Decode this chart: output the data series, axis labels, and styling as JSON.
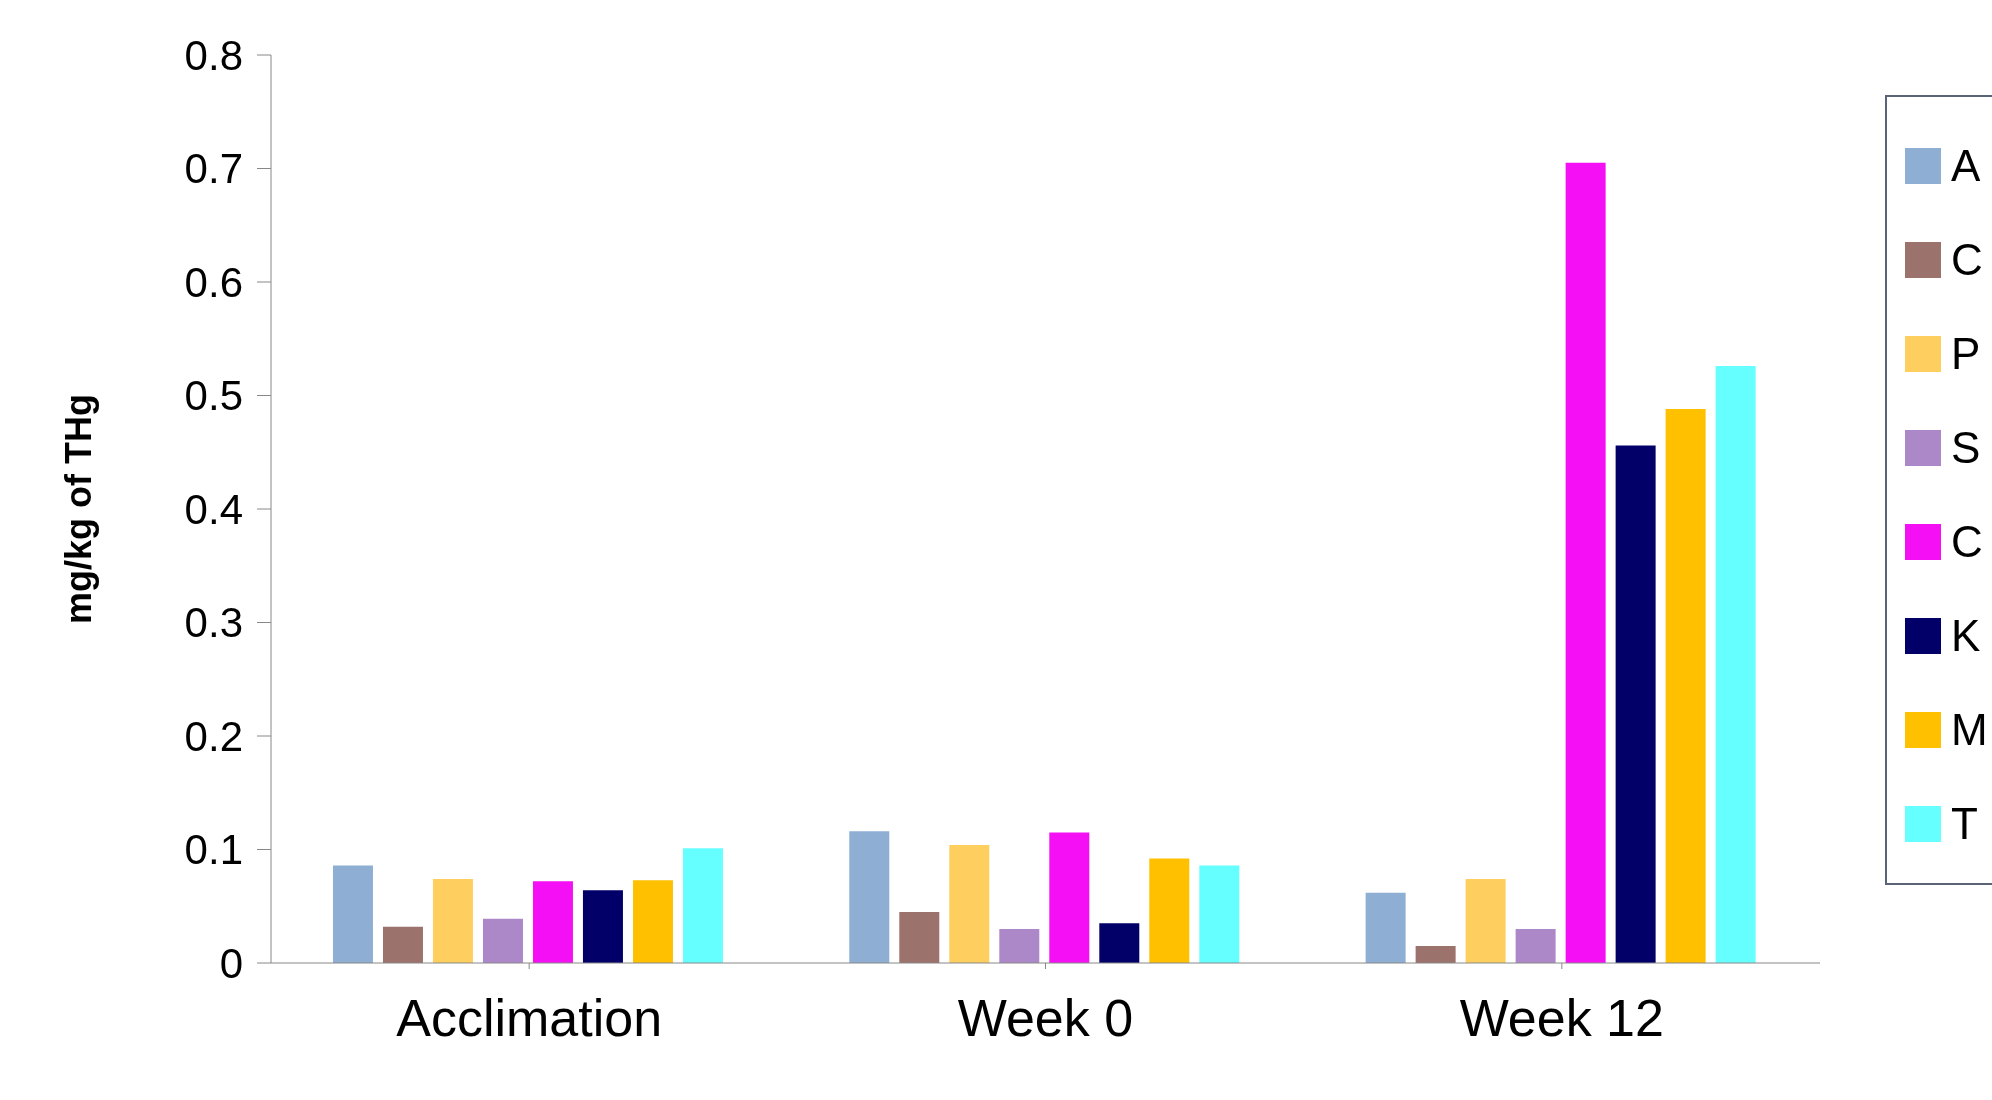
{
  "chart_data": {
    "type": "bar",
    "ylabel": "mg/kg of THg",
    "categories": [
      "Acclimation",
      "Week 0",
      "Week 12"
    ],
    "series": [
      {
        "name": "A",
        "color": "#8eaed4",
        "values": [
          0.086,
          0.116,
          0.062
        ]
      },
      {
        "name": "C",
        "color": "#9c726c",
        "values": [
          0.032,
          0.045,
          0.015
        ]
      },
      {
        "name": "P",
        "color": "#fecf5f",
        "values": [
          0.074,
          0.104,
          0.074
        ]
      },
      {
        "name": "S",
        "color": "#ad88c8",
        "values": [
          0.039,
          0.03,
          0.03
        ]
      },
      {
        "name": "C",
        "color": "#f50ff5",
        "values": [
          0.072,
          0.115,
          0.705
        ]
      },
      {
        "name": "K",
        "color": "#020068",
        "values": [
          0.064,
          0.035,
          0.456
        ]
      },
      {
        "name": "M",
        "color": "#ffc000",
        "values": [
          0.073,
          0.092,
          0.488
        ]
      },
      {
        "name": "T",
        "color": "#66ffff",
        "values": [
          0.101,
          0.086,
          0.526
        ]
      }
    ],
    "ylim": [
      0,
      0.8
    ],
    "yticks": [
      0,
      0.1,
      0.2,
      0.3,
      0.4,
      0.5,
      0.6,
      0.7,
      0.8
    ],
    "grid": false,
    "legend": "right"
  }
}
